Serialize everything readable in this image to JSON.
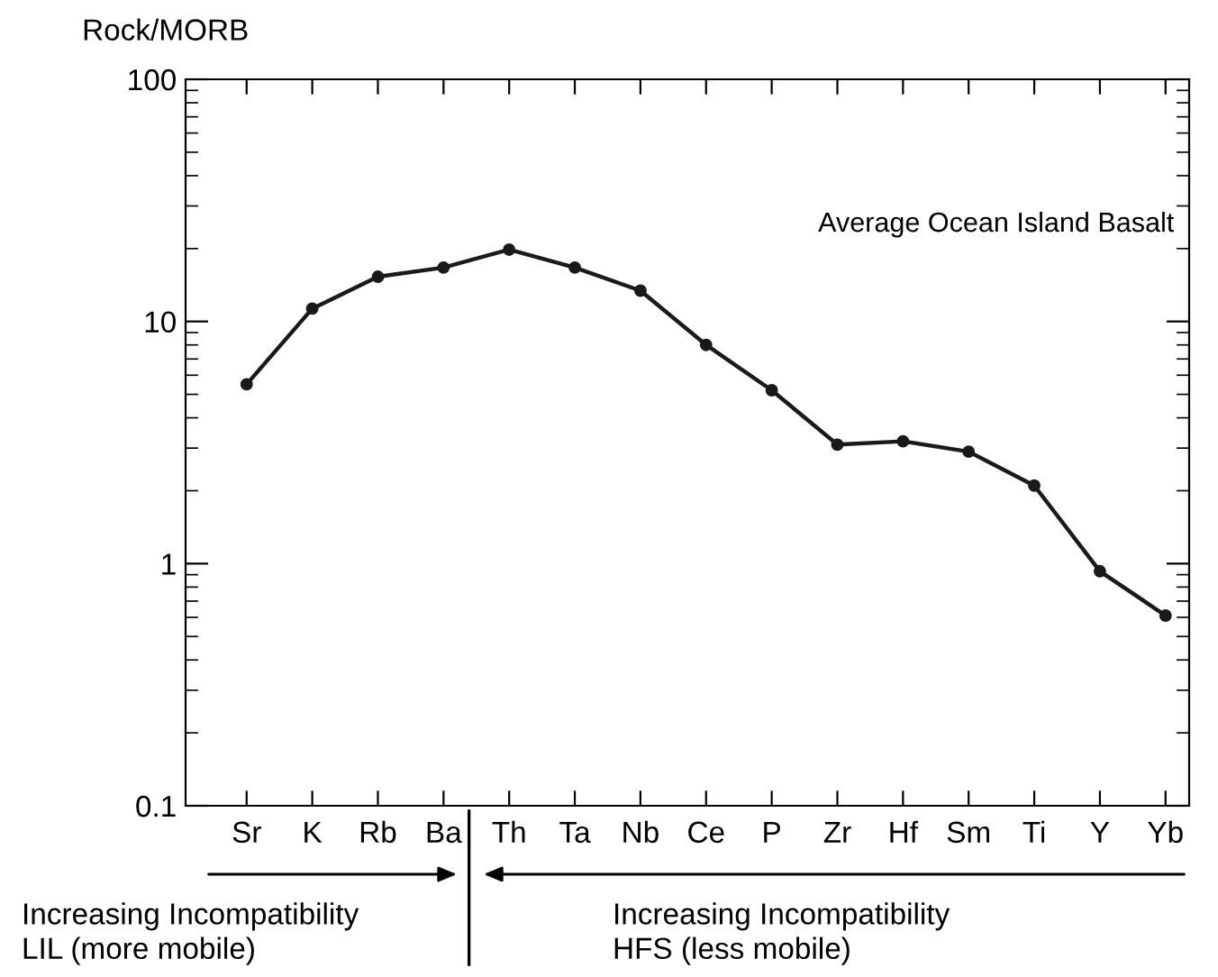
{
  "chart_data": {
    "type": "line",
    "ylabel": "Rock/MORB",
    "categories": [
      "Sr",
      "K",
      "Rb",
      "Ba",
      "Th",
      "Ta",
      "Nb",
      "Ce",
      "P",
      "Zr",
      "Hf",
      "Sm",
      "Ti",
      "Y",
      "Yb"
    ],
    "series": [
      {
        "name": "Average Ocean Island Basalt",
        "color": "#1a1a1a",
        "values": [
          5.5,
          11.3,
          15.3,
          16.7,
          19.8,
          16.7,
          13.4,
          8.0,
          5.2,
          3.1,
          3.2,
          2.9,
          2.1,
          0.93,
          0.61
        ]
      }
    ],
    "log": "y",
    "ylim": [
      0.1,
      100
    ],
    "yticks": [
      0.1,
      1,
      10,
      100
    ],
    "marker": "circle",
    "line_style": "solid",
    "grid": false,
    "legend": false,
    "annotations": [
      "Increasing Incompatibility\nLIL (more mobile)",
      "Increasing Incompatibility\nHFS (less mobile)"
    ]
  }
}
